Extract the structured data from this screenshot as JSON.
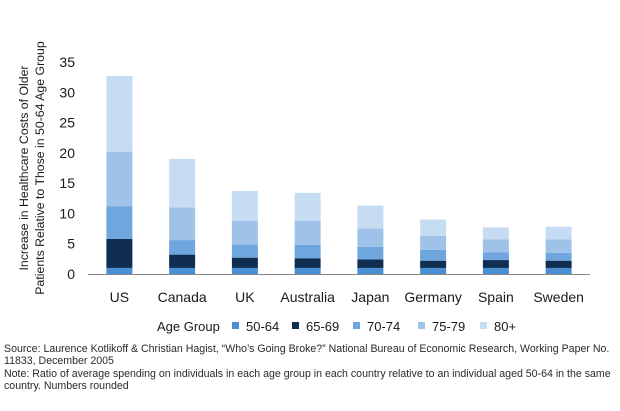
{
  "chart_data": {
    "type": "bar",
    "stacked": true,
    "ylabel": "Increase in Healthcare Costs of Older Patients Relative to Those in 50-64 Age Group",
    "ylabel_lines": [
      "Increase in Healthcare Costs of Older",
      "Patients Relative to Those in 50-64 Age Group"
    ],
    "xlabel": "",
    "ylim": [
      0,
      35
    ],
    "yticks": [
      0,
      5,
      10,
      15,
      20,
      25,
      30,
      35
    ],
    "grid": false,
    "categories": [
      "US",
      "Canada",
      "UK",
      "Australia",
      "Japan",
      "Germany",
      "Spain",
      "Sweden"
    ],
    "legend_title": "Age Group",
    "legend_position": "bottom",
    "series": [
      {
        "name": "50-64",
        "color": "#4a8fd3",
        "values": [
          1.0,
          1.0,
          1.0,
          1.0,
          1.0,
          1.0,
          1.0,
          1.0
        ]
      },
      {
        "name": "65-69",
        "color": "#0f2e52",
        "values": [
          4.8,
          2.2,
          1.7,
          1.6,
          1.4,
          1.2,
          1.3,
          1.2
        ]
      },
      {
        "name": "70-74",
        "color": "#6fa6dd",
        "values": [
          5.4,
          2.4,
          2.2,
          2.2,
          2.1,
          1.8,
          1.3,
          1.3
        ]
      },
      {
        "name": "75-79",
        "color": "#9fc3e8",
        "values": [
          9.0,
          5.4,
          3.9,
          4.0,
          3.0,
          2.3,
          2.1,
          2.2
        ]
      },
      {
        "name": "80+",
        "color": "#c6dcf2",
        "values": [
          12.5,
          8.0,
          4.9,
          4.6,
          3.8,
          2.7,
          2.0,
          2.1
        ]
      }
    ]
  },
  "notes": {
    "source": "Source: Laurence Kotlikoff & Christian Hagist, “Who’s Going Broke?” National Bureau of Economic Research, Working Paper No. 11833, December 2005",
    "note": "Note: Ratio of average spending on individuals in each age group in each country relative to an individual aged 50-64 in the same country. Numbers rounded"
  }
}
